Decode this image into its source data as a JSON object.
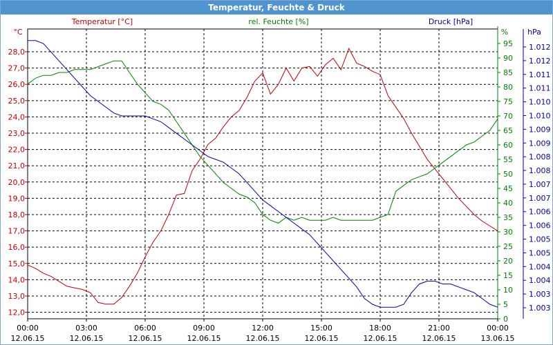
{
  "window": {
    "title": "Temperatur, Feuchte & Druck"
  },
  "chart_data": {
    "type": "line",
    "x_ticks": [
      {
        "t": "00:00",
        "d": "12.06.15"
      },
      {
        "t": "03:00",
        "d": "12.06.15"
      },
      {
        "t": "06:00",
        "d": "12.06.15"
      },
      {
        "t": "09:00",
        "d": "12.06.15"
      },
      {
        "t": "12:00",
        "d": "12.06.15"
      },
      {
        "t": "15:00",
        "d": "12.06.15"
      },
      {
        "t": "18:00",
        "d": "12.06.15"
      },
      {
        "t": "21:00",
        "d": "12.06.15"
      },
      {
        "t": "00:00",
        "d": "13.06.15"
      }
    ],
    "xlim": [
      0,
      24
    ],
    "axes": {
      "temp": {
        "label": "Temperatur [°C]",
        "unit": "°C",
        "color": "#c00000",
        "lim": [
          11.6,
          29.4
        ],
        "ticks": [
          "12,0",
          "13,0",
          "14,0",
          "15,0",
          "16,0",
          "17,0",
          "18,0",
          "19,0",
          "20,0",
          "21,0",
          "22,0",
          "23,0",
          "24,0",
          "25,0",
          "26,0",
          "27,0",
          "28,0"
        ]
      },
      "hum": {
        "label": "rel. Feuchte [%]",
        "unit": "%",
        "color": "#008000",
        "lim": [
          0,
          100
        ],
        "ticks": [
          "0",
          "5",
          "10",
          "15",
          "20",
          "25",
          "30",
          "35",
          "40",
          "45",
          "50",
          "55",
          "60",
          "65",
          "70",
          "75",
          "80",
          "85",
          "90",
          "95"
        ]
      },
      "press": {
        "label": "Druck [hPa]",
        "unit": "hPa",
        "color": "#0000a0",
        "lim": [
          1002.6,
          1012.6
        ],
        "ticks": [
          "1.003",
          "1.003",
          "1.004",
          "1.004",
          "1.005",
          "1.005",
          "1.006",
          "1.006",
          "1.007",
          "1.007",
          "1.008",
          "1.008",
          "1.009",
          "1.009",
          "1.010",
          "1.010",
          "1.011",
          "1.011",
          "1.012",
          "1.012"
        ]
      }
    },
    "series": [
      {
        "name": "Temperatur [°C]",
        "axis": "temp",
        "color": "#c00000",
        "x": [
          0,
          0.4,
          0.8,
          1.2,
          1.6,
          2.0,
          2.4,
          2.8,
          3.2,
          3.6,
          4.0,
          4.4,
          4.8,
          5.2,
          5.6,
          6.0,
          6.4,
          6.8,
          7.2,
          7.6,
          8.0,
          8.4,
          8.8,
          9.2,
          9.6,
          10.0,
          10.4,
          10.8,
          11.2,
          11.6,
          12.0,
          12.4,
          12.8,
          13.2,
          13.6,
          14.0,
          14.4,
          14.8,
          15.2,
          15.6,
          16.0,
          16.4,
          16.8,
          17.2,
          17.6,
          18.0,
          18.4,
          18.8,
          19.2,
          19.6,
          20.0,
          20.4,
          20.8,
          21.2,
          21.6,
          22.0,
          22.4,
          22.8,
          23.2,
          23.6,
          24.0
        ],
        "y": [
          14.9,
          14.7,
          14.4,
          14.2,
          13.9,
          13.6,
          13.5,
          13.4,
          13.2,
          12.6,
          12.5,
          12.5,
          12.9,
          13.6,
          14.4,
          15.4,
          16.3,
          17.0,
          18.0,
          19.2,
          19.3,
          20.7,
          21.4,
          22.3,
          22.7,
          23.4,
          24.0,
          24.4,
          25.2,
          26.2,
          26.7,
          25.4,
          26.0,
          27.0,
          26.2,
          27.0,
          27.1,
          26.5,
          27.2,
          27.6,
          26.9,
          28.2,
          27.3,
          27.1,
          26.8,
          26.6,
          25.3,
          24.6,
          23.9,
          23.0,
          22.2,
          21.4,
          20.8,
          20.2,
          19.6,
          19.0,
          18.5,
          18.0,
          17.6,
          17.3,
          17.0
        ]
      },
      {
        "name": "rel. Feuchte [%]",
        "axis": "hum",
        "color": "#008000",
        "x": [
          0,
          0.4,
          0.8,
          1.2,
          1.6,
          2.0,
          2.4,
          2.8,
          3.2,
          3.6,
          4.0,
          4.4,
          4.8,
          5.2,
          5.6,
          6.0,
          6.4,
          6.8,
          7.2,
          7.6,
          8.0,
          8.4,
          8.8,
          9.2,
          9.6,
          10.0,
          10.4,
          10.8,
          11.2,
          11.6,
          12.0,
          12.4,
          12.8,
          13.2,
          13.6,
          14.0,
          14.4,
          14.8,
          15.2,
          15.6,
          16.0,
          16.4,
          16.8,
          17.2,
          17.6,
          18.0,
          18.4,
          18.8,
          19.2,
          19.6,
          20.0,
          20.4,
          20.8,
          21.2,
          21.6,
          22.0,
          22.4,
          22.8,
          23.2,
          23.6,
          24.0
        ],
        "y": [
          81,
          83,
          84,
          84,
          85,
          85,
          86,
          86,
          86,
          87,
          88,
          89,
          89,
          85,
          81,
          78,
          75,
          74,
          72,
          68,
          64,
          60,
          56,
          53,
          50,
          47,
          45,
          43,
          42,
          40,
          36,
          34,
          33,
          35,
          34,
          35,
          34,
          34,
          34,
          35,
          34,
          34,
          34,
          34,
          34,
          35,
          36,
          44,
          46,
          48,
          49,
          50,
          52,
          54,
          56,
          58,
          60,
          61,
          63,
          65,
          69
        ]
      },
      {
        "name": "Druck [hPa]",
        "axis": "press",
        "color": "#0000a0",
        "x": [
          0,
          0.4,
          0.8,
          1.2,
          1.6,
          2.0,
          2.4,
          2.8,
          3.2,
          3.6,
          4.0,
          4.4,
          4.8,
          5.2,
          5.6,
          6.0,
          6.4,
          6.8,
          7.2,
          7.6,
          8.0,
          8.4,
          8.8,
          9.2,
          9.6,
          10.0,
          10.4,
          10.8,
          11.2,
          11.6,
          12.0,
          12.4,
          12.8,
          13.2,
          13.6,
          14.0,
          14.4,
          14.8,
          15.2,
          15.6,
          16.0,
          16.4,
          16.8,
          17.2,
          17.6,
          18.0,
          18.4,
          18.8,
          19.2,
          19.6,
          20.0,
          20.4,
          20.8,
          21.2,
          21.6,
          22.0,
          22.4,
          22.8,
          23.2,
          23.6,
          24.0
        ],
        "y": [
          1012.2,
          1012.2,
          1012.1,
          1011.8,
          1011.5,
          1011.2,
          1010.9,
          1010.6,
          1010.3,
          1010.1,
          1009.9,
          1009.7,
          1009.6,
          1009.6,
          1009.6,
          1009.6,
          1009.5,
          1009.4,
          1009.2,
          1009.0,
          1008.8,
          1008.6,
          1008.4,
          1008.2,
          1008.1,
          1008.0,
          1007.8,
          1007.6,
          1007.3,
          1007.0,
          1006.7,
          1006.5,
          1006.3,
          1006.1,
          1005.9,
          1005.7,
          1005.5,
          1005.2,
          1004.9,
          1004.6,
          1004.3,
          1004.0,
          1003.7,
          1003.3,
          1003.1,
          1003.0,
          1003.0,
          1003.0,
          1003.1,
          1003.5,
          1003.8,
          1003.9,
          1003.9,
          1003.8,
          1003.8,
          1003.7,
          1003.6,
          1003.5,
          1003.3,
          1003.1,
          1003.0
        ]
      }
    ],
    "grid": true,
    "grid_style": "dashed"
  }
}
